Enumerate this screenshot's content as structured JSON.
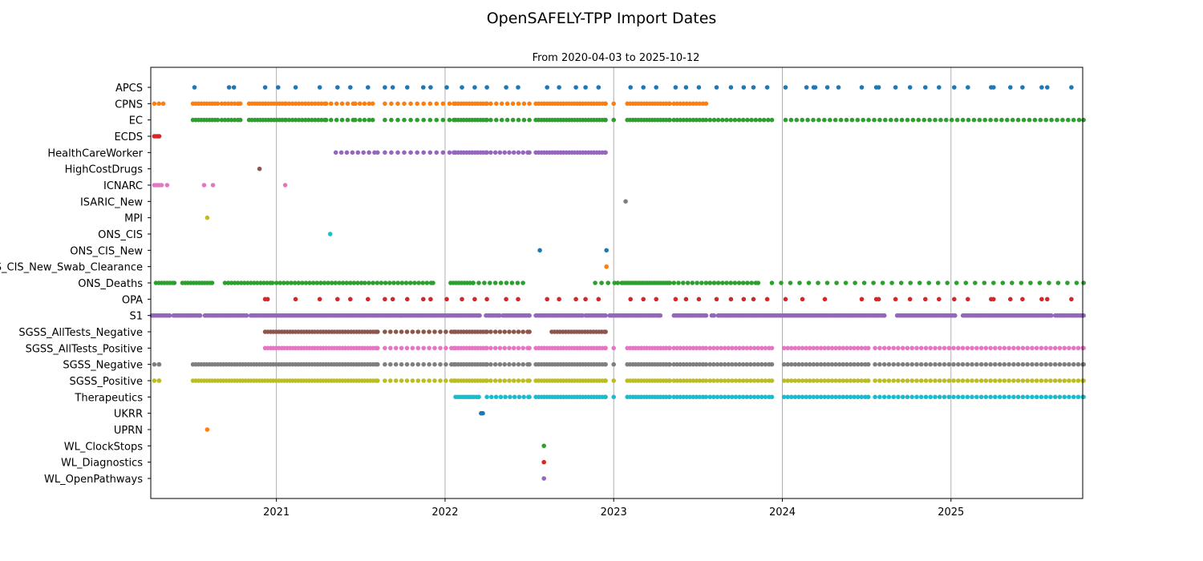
{
  "chart_data": {
    "type": "scatter",
    "title": "OpenSAFELY-TPP Import Dates",
    "subtitle": "From 2020-04-03 to 2025-10-12",
    "xlabel": "",
    "ylabel": "",
    "x_units": "decimal year",
    "xlim": [
      2020.255,
      2025.781
    ],
    "x_ticks": [
      2021,
      2022,
      2023,
      2024,
      2025
    ],
    "x_tick_labels": [
      "2021",
      "2022",
      "2023",
      "2024",
      "2025"
    ],
    "grid": "vertical at year ticks",
    "series_note": "segments are [start_year, end_year, step_days]; points are decimal years",
    "series": [
      {
        "name": "APCS",
        "color": "#1f77b4",
        "points": [
          2020.514,
          2020.719,
          2020.748,
          2020.933,
          2021.01,
          2021.114,
          2021.257,
          2021.362,
          2021.438,
          2021.543,
          2021.643,
          2021.69,
          2021.776,
          2021.871,
          2021.914,
          2022.01,
          2022.1,
          2022.176,
          2022.248,
          2022.362,
          2022.433,
          2022.605,
          2022.676,
          2022.776,
          2022.833,
          2022.91,
          2023.1,
          2023.176,
          2023.252,
          2023.367,
          2023.429,
          2023.505,
          2023.61,
          2023.695,
          2023.771,
          2023.829,
          2023.91,
          2024.019,
          2024.143,
          2024.186,
          2024.195,
          2024.267,
          2024.333,
          2024.471,
          2024.557,
          2024.571,
          2024.671,
          2024.757,
          2024.848,
          2024.929,
          2025.019,
          2025.1,
          2025.238,
          2025.252,
          2025.352,
          2025.424,
          2025.538,
          2025.571,
          2025.714
        ]
      },
      {
        "name": "CPNS",
        "color": "#ff7f0e",
        "segments": [
          [
            2020.276,
            2020.329,
            10
          ],
          [
            2020.505,
            2020.652,
            6
          ],
          [
            2020.676,
            2020.786,
            7
          ],
          [
            2020.838,
            2021.057,
            6
          ],
          [
            2021.076,
            2021.295,
            7
          ],
          [
            2021.324,
            2021.467,
            12
          ],
          [
            2021.495,
            2021.571,
            10
          ],
          [
            2021.643,
            2022.052,
            14
          ],
          [
            2022.062,
            2022.248,
            6
          ],
          [
            2022.271,
            2022.5,
            12
          ],
          [
            2022.538,
            2022.952,
            6
          ],
          [
            2023.0,
            2023.0,
            1
          ],
          [
            2023.081,
            2023.333,
            6
          ],
          [
            2023.357,
            2023.548,
            7
          ]
        ]
      },
      {
        "name": "EC",
        "color": "#2ca02c",
        "segments": [
          [
            2020.505,
            2020.652,
            6
          ],
          [
            2020.676,
            2020.786,
            7
          ],
          [
            2020.838,
            2021.057,
            6
          ],
          [
            2021.076,
            2021.295,
            7
          ],
          [
            2021.324,
            2021.467,
            12
          ],
          [
            2021.495,
            2021.571,
            10
          ],
          [
            2021.643,
            2022.052,
            14
          ],
          [
            2022.062,
            2022.248,
            6
          ],
          [
            2022.271,
            2022.5,
            12
          ],
          [
            2022.538,
            2022.952,
            6
          ],
          [
            2023.0,
            2023.0,
            1
          ],
          [
            2023.081,
            2023.333,
            6
          ],
          [
            2023.357,
            2023.548,
            7
          ],
          [
            2023.571,
            2023.938,
            9
          ],
          [
            2024.019,
            2025.786,
            12
          ]
        ]
      },
      {
        "name": "ECDS",
        "color": "#d62728",
        "segments": [
          [
            2020.276,
            2020.305,
            4
          ]
        ]
      },
      {
        "name": "HealthCareWorker",
        "color": "#9467bd",
        "segments": [
          [
            2021.352,
            2021.6,
            12
          ],
          [
            2021.643,
            2022.052,
            14
          ],
          [
            2022.062,
            2022.248,
            6
          ],
          [
            2022.271,
            2022.5,
            10
          ],
          [
            2022.538,
            2022.952,
            6
          ]
        ]
      },
      {
        "name": "HighCostDrugs",
        "color": "#8c564b",
        "points": [
          2020.9
        ]
      },
      {
        "name": "ICNARC",
        "color": "#e377c2",
        "points": [
          2020.276,
          2020.29,
          2020.305,
          2020.319,
          2020.352,
          2020.571,
          2020.624,
          2021.052
        ]
      },
      {
        "name": "ISARIC_New",
        "color": "#7f7f7f",
        "points": [
          2023.071
        ]
      },
      {
        "name": "MPI",
        "color": "#bcbd22",
        "points": [
          2020.59
        ]
      },
      {
        "name": "ONS_CIS",
        "color": "#17becf",
        "points": [
          2021.319
        ]
      },
      {
        "name": "ONS_CIS_New",
        "color": "#1f77b4",
        "points": [
          2022.562,
          2022.957
        ]
      },
      {
        "name": "ONS_CIS_New_Swab_Clearance",
        "color": "#ff7f0e",
        "points": [
          2022.957
        ]
      },
      {
        "name": "ONS_Deaths",
        "color": "#2ca02c",
        "segments": [
          [
            2020.286,
            2020.395,
            6
          ],
          [
            2020.443,
            2020.619,
            6
          ],
          [
            2020.695,
            2020.976,
            7
          ],
          [
            2021.0,
            2021.524,
            8
          ],
          [
            2021.548,
            2021.929,
            9
          ],
          [
            2022.033,
            2022.167,
            6
          ],
          [
            2022.2,
            2022.462,
            12
          ],
          [
            2022.89,
            2023.024,
            14
          ],
          [
            2023.048,
            2023.333,
            5
          ],
          [
            2023.357,
            2023.548,
            10
          ],
          [
            2023.571,
            2023.857,
            9
          ],
          [
            2023.938,
            2025.786,
            20
          ]
        ]
      },
      {
        "name": "OPA",
        "color": "#d62728",
        "points": [
          2020.933,
          2020.948,
          2021.114,
          2021.257,
          2021.362,
          2021.438,
          2021.543,
          2021.643,
          2021.69,
          2021.776,
          2021.871,
          2021.914,
          2022.01,
          2022.1,
          2022.176,
          2022.248,
          2022.362,
          2022.433,
          2022.605,
          2022.676,
          2022.776,
          2022.833,
          2022.91,
          2023.1,
          2023.176,
          2023.252,
          2023.367,
          2023.429,
          2023.505,
          2023.61,
          2023.695,
          2023.771,
          2023.829,
          2023.91,
          2024.019,
          2024.119,
          2024.252,
          2024.471,
          2024.557,
          2024.571,
          2024.671,
          2024.757,
          2024.848,
          2024.929,
          2025.019,
          2025.1,
          2025.238,
          2025.252,
          2025.352,
          2025.424,
          2025.538,
          2025.571,
          2025.714
        ]
      },
      {
        "name": "S1",
        "color": "#9467bd",
        "segments": [
          [
            2020.262,
            2020.367,
            4
          ],
          [
            2020.39,
            2020.548,
            4
          ],
          [
            2020.576,
            2020.824,
            4
          ],
          [
            2020.848,
            2021.738,
            4
          ],
          [
            2021.748,
            2022.205,
            4
          ],
          [
            2022.243,
            2022.324,
            4
          ],
          [
            2022.343,
            2022.5,
            4
          ],
          [
            2022.538,
            2022.814,
            4
          ],
          [
            2022.833,
            2022.952,
            4
          ],
          [
            2022.976,
            2023.276,
            4
          ],
          [
            2023.357,
            2023.548,
            4
          ],
          [
            2023.581,
            2023.595,
            4
          ],
          [
            2023.619,
            2024.605,
            4
          ],
          [
            2024.681,
            2025.024,
            4
          ],
          [
            2025.071,
            2025.595,
            4
          ],
          [
            2025.619,
            2025.786,
            4
          ]
        ]
      },
      {
        "name": "SGSS_AllTests_Negative",
        "color": "#8c564b",
        "segments": [
          [
            2020.933,
            2021.6,
            6
          ],
          [
            2021.643,
            2022.052,
            12
          ],
          [
            2022.062,
            2022.248,
            6
          ],
          [
            2022.271,
            2022.5,
            10
          ],
          [
            2022.633,
            2022.952,
            6
          ]
        ]
      },
      {
        "name": "SGSS_AllTests_Positive",
        "color": "#e377c2",
        "segments": [
          [
            2020.933,
            2021.6,
            6
          ],
          [
            2021.643,
            2022.052,
            12
          ],
          [
            2022.062,
            2022.248,
            6
          ],
          [
            2022.271,
            2022.5,
            10
          ],
          [
            2022.538,
            2022.952,
            6
          ],
          [
            2023.0,
            2023.0,
            1
          ],
          [
            2023.081,
            2023.333,
            6
          ],
          [
            2023.357,
            2023.548,
            7
          ],
          [
            2023.571,
            2023.938,
            8
          ],
          [
            2024.01,
            2024.51,
            8
          ],
          [
            2024.55,
            2025.786,
            10
          ]
        ]
      },
      {
        "name": "SGSS_Negative",
        "color": "#7f7f7f",
        "segments": [
          [
            2020.276,
            2020.305,
            10
          ],
          [
            2020.505,
            2021.6,
            6
          ],
          [
            2021.643,
            2022.052,
            12
          ],
          [
            2022.062,
            2022.248,
            6
          ],
          [
            2022.271,
            2022.5,
            10
          ],
          [
            2022.538,
            2022.952,
            6
          ],
          [
            2023.0,
            2023.0,
            1
          ],
          [
            2023.081,
            2023.333,
            6
          ],
          [
            2023.357,
            2023.548,
            7
          ],
          [
            2023.571,
            2023.938,
            8
          ],
          [
            2024.01,
            2024.51,
            8
          ],
          [
            2024.55,
            2025.786,
            10
          ]
        ]
      },
      {
        "name": "SGSS_Positive",
        "color": "#bcbd22",
        "segments": [
          [
            2020.276,
            2020.305,
            10
          ],
          [
            2020.505,
            2021.6,
            6
          ],
          [
            2021.643,
            2022.052,
            12
          ],
          [
            2022.062,
            2022.248,
            6
          ],
          [
            2022.271,
            2022.5,
            10
          ],
          [
            2022.538,
            2022.952,
            6
          ],
          [
            2023.0,
            2023.0,
            1
          ],
          [
            2023.081,
            2023.333,
            6
          ],
          [
            2023.357,
            2023.548,
            7
          ],
          [
            2023.571,
            2023.938,
            8
          ],
          [
            2024.01,
            2024.51,
            8
          ],
          [
            2024.55,
            2025.786,
            10
          ]
        ]
      },
      {
        "name": "Therapeutics",
        "color": "#17becf",
        "segments": [
          [
            2022.062,
            2022.2,
            5
          ],
          [
            2022.248,
            2022.5,
            10
          ],
          [
            2022.538,
            2022.952,
            6
          ],
          [
            2023.0,
            2023.0,
            1
          ],
          [
            2023.081,
            2023.333,
            6
          ],
          [
            2023.357,
            2023.548,
            7
          ],
          [
            2023.571,
            2023.938,
            8
          ],
          [
            2024.01,
            2024.51,
            8
          ],
          [
            2024.55,
            2025.786,
            10
          ]
        ]
      },
      {
        "name": "UKRR",
        "color": "#1f77b4",
        "points": [
          2022.214,
          2022.224
        ]
      },
      {
        "name": "UPRN",
        "color": "#ff7f0e",
        "points": [
          2020.59
        ]
      },
      {
        "name": "WL_ClockStops",
        "color": "#2ca02c",
        "points": [
          2022.586
        ]
      },
      {
        "name": "WL_Diagnostics",
        "color": "#d62728",
        "points": [
          2022.586
        ]
      },
      {
        "name": "WL_OpenPathways",
        "color": "#9467bd",
        "points": [
          2022.586
        ]
      }
    ]
  }
}
